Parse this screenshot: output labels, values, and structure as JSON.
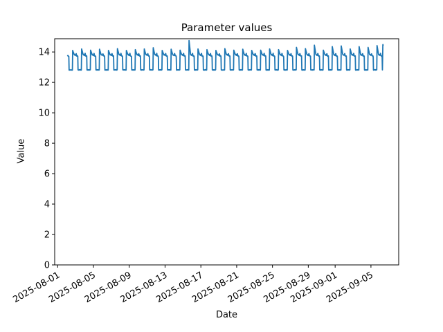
{
  "chart_data": {
    "type": "line",
    "title": "Parameter values",
    "xlabel": "Date",
    "ylabel": "Value",
    "line_color": "#1f77b4",
    "background_color": "#ffffff",
    "frame_color": "#000000",
    "legend": "none",
    "grid": "off",
    "ylim": [
      0,
      14.87
    ],
    "xlim_days_from_2025_08_01": [
      -0.33,
      38.1
    ],
    "y_ticks": [
      0,
      2,
      4,
      6,
      8,
      10,
      12,
      14
    ],
    "x_ticks": [
      {
        "label": "2025-08-01",
        "day": 0
      },
      {
        "label": "2025-08-05",
        "day": 4
      },
      {
        "label": "2025-08-09",
        "day": 8
      },
      {
        "label": "2025-08-13",
        "day": 12
      },
      {
        "label": "2025-08-17",
        "day": 16
      },
      {
        "label": "2025-08-21",
        "day": 20
      },
      {
        "label": "2025-08-25",
        "day": 24
      },
      {
        "label": "2025-08-29",
        "day": 28
      },
      {
        "label": "2025-09-01",
        "day": 31
      },
      {
        "label": "2025-09-05",
        "day": 35
      }
    ],
    "x_tick_rotation_deg": -30,
    "series": [
      {
        "name": "parameter-values",
        "pattern": "daily-square-wave",
        "data_start_day": 1.12,
        "data_end_day": 36.36,
        "low_value": 12.82,
        "plateau_start_value": 13.83,
        "plateau_end_value": 13.72,
        "rise_at_cycle_fraction": -0.35,
        "fall_at_cycle_fraction": 0.25,
        "edge_width_days": 0.03,
        "spike_decay_end_u": 0.2,
        "plateau_bump_height": 0.12,
        "noise_amplitude": 0.05,
        "cycle_peak_values": [
          13.9,
          14.1,
          14.2,
          14.12,
          14.18,
          14.1,
          14.22,
          14.1,
          14.15,
          14.2,
          14.28,
          14.1,
          14.18,
          14.12,
          14.75,
          14.2,
          14.15,
          14.1,
          14.22,
          14.12,
          14.18,
          14.1,
          14.12,
          14.2,
          14.15,
          14.1,
          14.3,
          14.22,
          14.45,
          14.12,
          14.35,
          14.4,
          14.2,
          14.35,
          14.3,
          14.42,
          14.5
        ],
        "anomaly": {
          "date": "2025-08-15",
          "peak_value": 14.75
        },
        "final_spike": {
          "rise_start_day": 36.28,
          "peak_day": 36.33,
          "end_day": 36.36,
          "value": 14.5
        }
      }
    ]
  }
}
